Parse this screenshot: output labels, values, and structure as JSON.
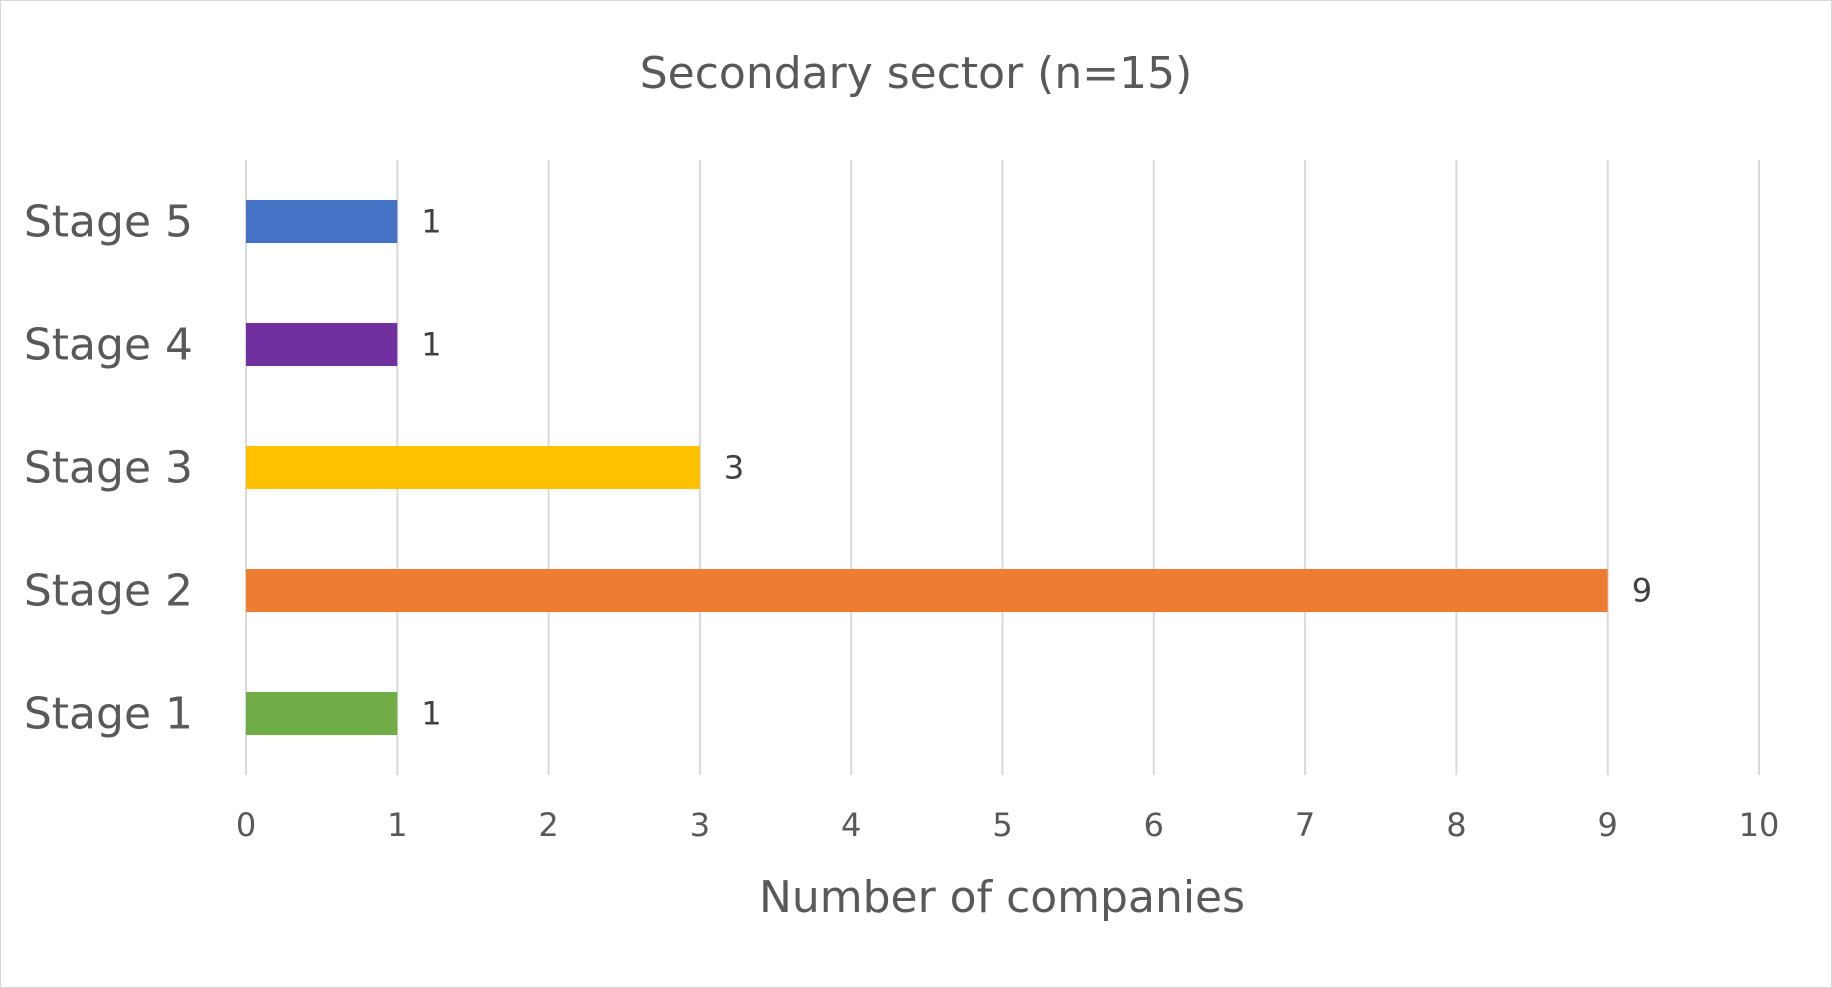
{
  "chart_data": {
    "type": "bar",
    "orientation": "horizontal",
    "title": "Secondary sector (n=15)",
    "xlabel": "Number of companies",
    "ylabel": "",
    "categories": [
      "Stage 5",
      "Stage 4",
      "Stage 3",
      "Stage 2",
      "Stage 1"
    ],
    "values": [
      1,
      1,
      3,
      9,
      1
    ],
    "colors": [
      "#4472c4",
      "#7030a0",
      "#ffc000",
      "#ed7d31",
      "#70ad47"
    ],
    "xlim": [
      0,
      10
    ],
    "x_ticks": [
      "0",
      "1",
      "2",
      "3",
      "4",
      "5",
      "6",
      "7",
      "8",
      "9",
      "10"
    ],
    "grid": "vertical",
    "legend": "none",
    "data_labels": [
      "1",
      "1",
      "3",
      "9",
      "1"
    ]
  }
}
